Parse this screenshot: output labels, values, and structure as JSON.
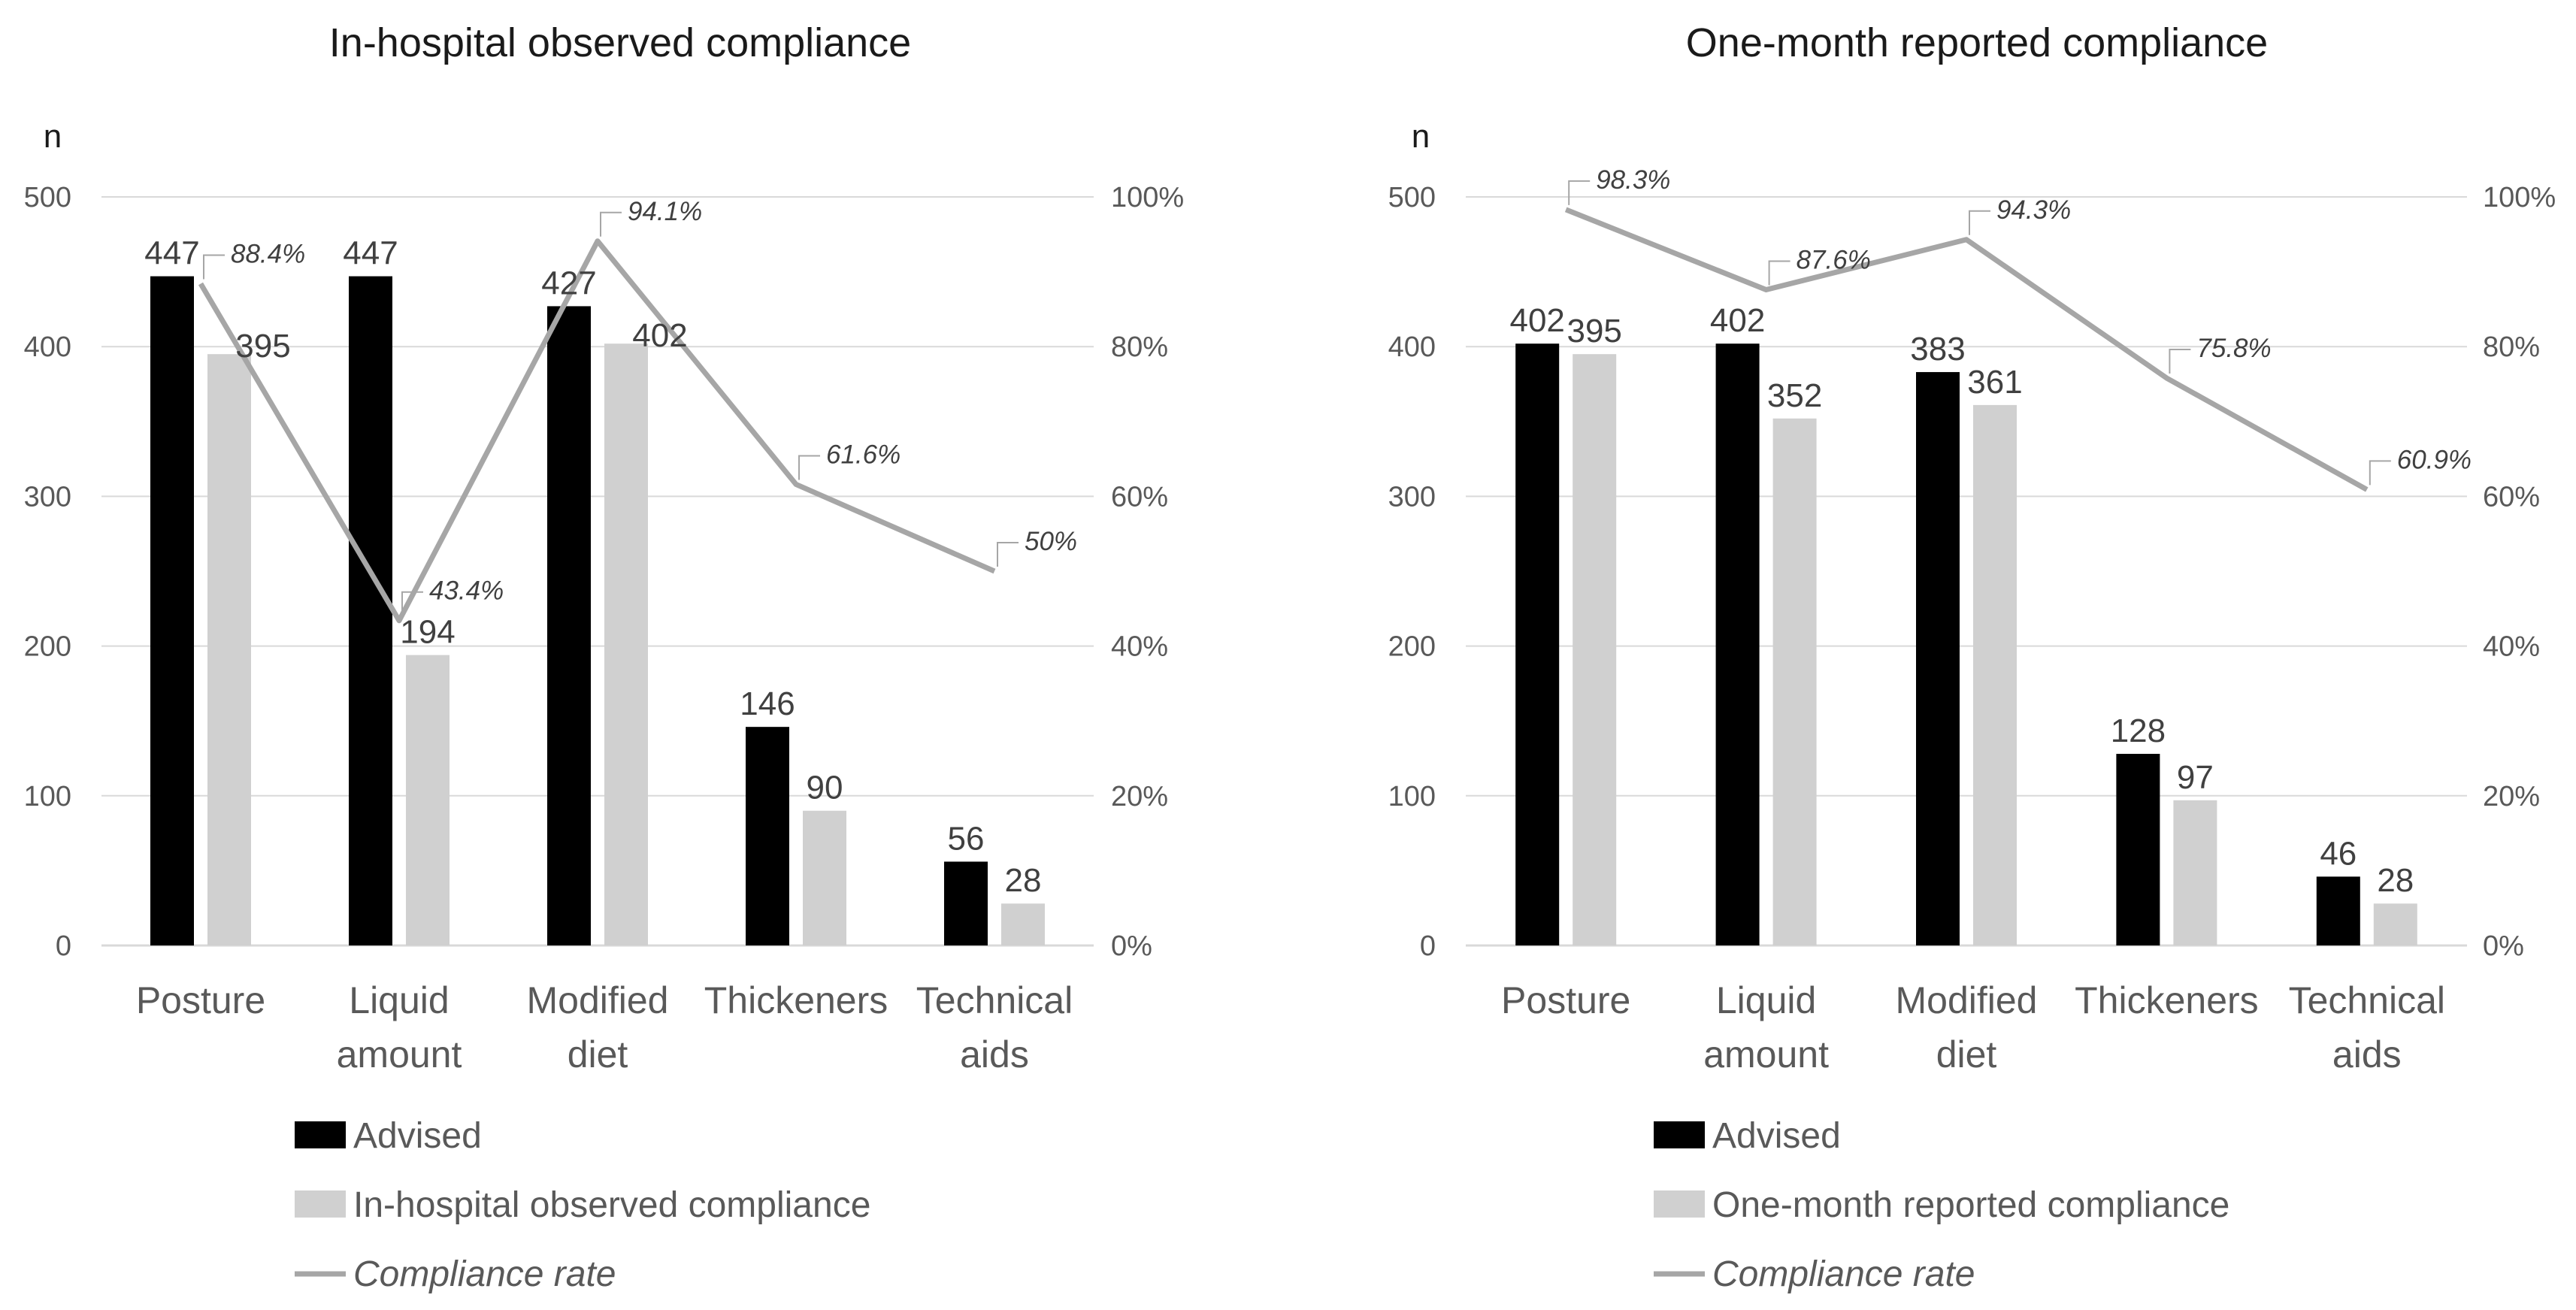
{
  "colors": {
    "advised": "#000000",
    "compliance_bar": "#d0d0d0",
    "rate_line": "#a6a6a6",
    "grid": "#d9d9d9",
    "text": "#595959"
  },
  "chart_data": [
    {
      "type": "bar",
      "title": "In-hospital observed compliance",
      "ylabel": "n",
      "ylim": [
        0,
        500
      ],
      "y_ticks": [
        "0",
        "100",
        "200",
        "300",
        "400",
        "500"
      ],
      "y2lim": [
        0,
        100
      ],
      "y2_ticks": [
        "0%",
        "20%",
        "40%",
        "60%",
        "80%",
        "100%"
      ],
      "categories": [
        [
          "Posture"
        ],
        [
          "Liquid",
          "amount"
        ],
        [
          "Modified",
          "diet"
        ],
        [
          "Thickeners"
        ],
        [
          "Technical",
          "aids"
        ]
      ],
      "series": [
        {
          "name": "Advised",
          "kind": "bar",
          "values": [
            447,
            447,
            427,
            146,
            56
          ],
          "labels": [
            "447",
            "447",
            "427",
            "146",
            "56"
          ]
        },
        {
          "name": "In-hospital observed compliance",
          "kind": "bar",
          "values": [
            395,
            194,
            402,
            90,
            28
          ],
          "labels": [
            "395",
            "194",
            "402",
            "90",
            "28"
          ]
        },
        {
          "name": "Compliance rate",
          "kind": "line",
          "axis": "right",
          "values": [
            88.4,
            43.4,
            94.1,
            61.6,
            50
          ],
          "labels": [
            "88.4%",
            "43.4%",
            "94.1%",
            "61.6%",
            "50%"
          ]
        }
      ],
      "grid": true,
      "legend": "bottom-left"
    },
    {
      "type": "bar",
      "title": "One-month reported compliance",
      "ylabel": "n",
      "ylim": [
        0,
        500
      ],
      "y_ticks": [
        "0",
        "100",
        "200",
        "300",
        "400",
        "500"
      ],
      "y2lim": [
        0,
        100
      ],
      "y2_ticks": [
        "0%",
        "20%",
        "40%",
        "60%",
        "80%",
        "100%"
      ],
      "categories": [
        [
          "Posture"
        ],
        [
          "Liquid",
          "amount"
        ],
        [
          "Modified",
          "diet"
        ],
        [
          "Thickeners"
        ],
        [
          "Technical",
          "aids"
        ]
      ],
      "series": [
        {
          "name": "Advised",
          "kind": "bar",
          "values": [
            402,
            402,
            383,
            128,
            46
          ],
          "labels": [
            "402",
            "402",
            "383",
            "128",
            "46"
          ]
        },
        {
          "name": "One-month reported compliance",
          "kind": "bar",
          "values": [
            395,
            352,
            361,
            97,
            28
          ],
          "labels": [
            "395",
            "352",
            "361",
            "97",
            "28"
          ]
        },
        {
          "name": "Compliance rate",
          "kind": "line",
          "axis": "right",
          "values": [
            98.3,
            87.6,
            94.3,
            75.8,
            60.9
          ],
          "labels": [
            "98.3%",
            "87.6%",
            "94.3%",
            "75.8%",
            "60.9%"
          ]
        }
      ],
      "grid": true,
      "legend": "bottom-left"
    }
  ]
}
